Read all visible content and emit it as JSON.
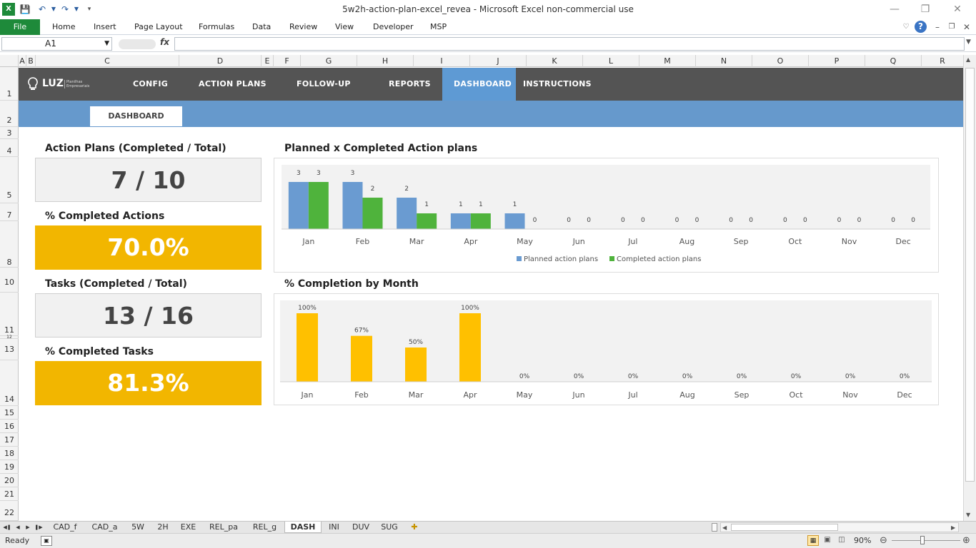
{
  "window": {
    "title": "5w2h-action-plan-excel_revea  -  Microsoft Excel non-commercial use"
  },
  "ribbon": {
    "file_label": "File",
    "tabs": [
      "Home",
      "Insert",
      "Page Layout",
      "Formulas",
      "Data",
      "Review",
      "View",
      "Developer",
      "MSP"
    ]
  },
  "formula_bar": {
    "name_box": "A1",
    "fx_label": "fx",
    "value": ""
  },
  "columns": [
    "A",
    "B",
    "C",
    "D",
    "E",
    "F",
    "G",
    "H",
    "I",
    "J",
    "K",
    "L",
    "M",
    "N",
    "O",
    "P",
    "Q",
    "R"
  ],
  "rows": [
    "1",
    "2",
    "3",
    "4",
    "5",
    "7",
    "8",
    "10",
    "11",
    "12",
    "13",
    "14",
    "15",
    "16",
    "17",
    "18",
    "19",
    "20",
    "21",
    "22"
  ],
  "logo": {
    "text": "LUZ",
    "tagline": "Planilhas Empresariais"
  },
  "nav": {
    "items": [
      "CONFIG",
      "ACTION PLANS",
      "FOLLOW-UP",
      "REPORTS",
      "DASHBOARD",
      "INSTRUCTIONS"
    ],
    "active": "DASHBOARD",
    "subtab": "DASHBOARD"
  },
  "kpis": {
    "action_plans_label": "Action Plans (Completed / Total)",
    "action_plans_value": "7 / 10",
    "pct_actions_label": "% Completed Actions",
    "pct_actions_value": "70.0%",
    "tasks_label": "Tasks (Completed / Total)",
    "tasks_value": "13 / 16",
    "pct_tasks_label": "% Completed Tasks",
    "pct_tasks_value": "81.3%"
  },
  "colors": {
    "planned": "#6a9bd1",
    "completed": "#4fb33c",
    "completion": "#ffc000",
    "nav_bg": "#545454",
    "nav_active": "#5e9ad4",
    "subnav_bg": "#6699cc",
    "kpi_gold": "#f2b600"
  },
  "chart_data": [
    {
      "type": "bar",
      "title": "Planned x Completed Action plans",
      "categories": [
        "Jan",
        "Feb",
        "Mar",
        "Apr",
        "May",
        "Jun",
        "Jul",
        "Aug",
        "Sep",
        "Oct",
        "Nov",
        "Dec"
      ],
      "series": [
        {
          "name": "Planned action plans",
          "values": [
            3,
            3,
            2,
            1,
            1,
            0,
            0,
            0,
            0,
            0,
            0,
            0
          ]
        },
        {
          "name": "Completed action plans",
          "values": [
            3,
            2,
            1,
            1,
            0,
            0,
            0,
            0,
            0,
            0,
            0,
            0
          ]
        }
      ],
      "ylim": [
        0,
        3.5
      ],
      "legend": "bottom",
      "grid": false
    },
    {
      "type": "bar",
      "title": "% Completion by Month",
      "categories": [
        "Jan",
        "Feb",
        "Mar",
        "Apr",
        "May",
        "Jun",
        "Jul",
        "Aug",
        "Sep",
        "Oct",
        "Nov",
        "Dec"
      ],
      "series": [
        {
          "values": [
            100,
            67,
            50,
            100,
            0,
            0,
            0,
            0,
            0,
            0,
            0,
            0
          ]
        }
      ],
      "value_labels": [
        "100%",
        "67%",
        "50%",
        "100%",
        "0%",
        "0%",
        "0%",
        "0%",
        "0%",
        "0%",
        "0%",
        "0%"
      ],
      "ylim": [
        0,
        110
      ],
      "grid": false
    }
  ],
  "sheet_tabs": [
    "CAD_f",
    "CAD_a",
    "5W",
    "2H",
    "EXE",
    "REL_pa",
    "REL_g",
    "DASH",
    "INI",
    "DUV",
    "SUG"
  ],
  "active_sheet": "DASH",
  "status": {
    "ready": "Ready",
    "zoom": "90%"
  }
}
